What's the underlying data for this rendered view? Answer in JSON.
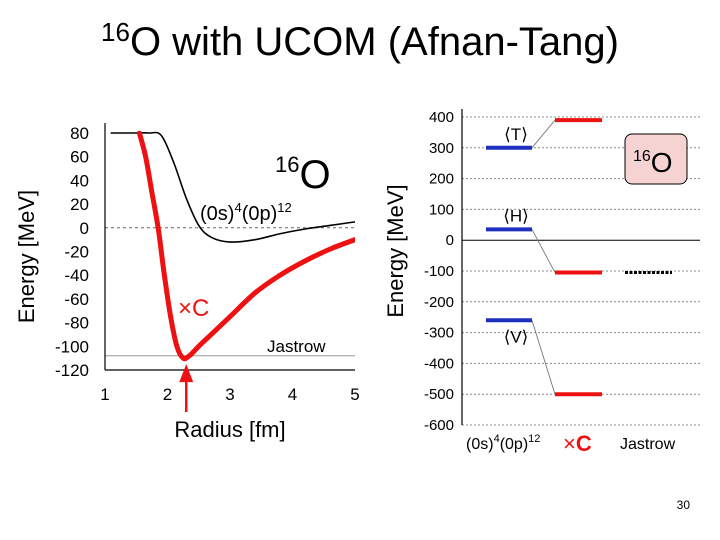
{
  "slide": {
    "title_sup": "16",
    "title_main": "O with UCOM (Afnan-Tang)",
    "page_number": "30"
  },
  "colors": {
    "red": "#ee1111",
    "blue": "#1f2fbf",
    "black": "#000000",
    "grid": "#888888",
    "box_fill": "#f6d3d3"
  },
  "chart_data": [
    {
      "type": "line",
      "xlabel": "Radius [fm]",
      "ylabel": "Energy [MeV]",
      "xlim": [
        1,
        5
      ],
      "ylim": [
        -120,
        80
      ],
      "xticks": [
        "1",
        "2",
        "3",
        "4",
        "5"
      ],
      "yticks": [
        "80",
        "60",
        "40",
        "20",
        "0",
        "-20",
        "-40",
        "-60",
        "-80",
        "-100",
        "-120"
      ],
      "grid": false,
      "annotations": {
        "nucleus_sup": "16",
        "nucleus": "O",
        "config": "(0s)^4(0p)^12",
        "config_parts": [
          "(0s)",
          "4",
          "(0p)",
          "12"
        ],
        "jastrow": "Jastrow",
        "ucom_marker": "×",
        "ucom_letter": "C"
      },
      "reference_lines": [
        {
          "y": 0,
          "style": "dashed"
        },
        {
          "y": -108,
          "style": "solid",
          "label": "Jastrow"
        }
      ],
      "series": [
        {
          "color": "#000000",
          "x": [
            1.1,
            1.3,
            1.5,
            1.7,
            1.9,
            2.1,
            2.3,
            2.5,
            2.7,
            3.0,
            3.4,
            3.8,
            4.2,
            4.6,
            5.0
          ],
          "y": [
            80,
            80,
            80,
            80,
            78,
            55,
            25,
            2,
            -8,
            -12,
            -10,
            -5,
            -1,
            2,
            5
          ]
        },
        {
          "color": "#ee1111",
          "x": [
            1.55,
            1.65,
            1.75,
            1.85,
            1.95,
            2.05,
            2.15,
            2.25,
            2.35,
            2.5,
            2.7,
            3.0,
            3.4,
            3.8,
            4.2,
            4.6,
            5.0
          ],
          "y": [
            80,
            60,
            30,
            0,
            -40,
            -75,
            -100,
            -110,
            -108,
            -100,
            -90,
            -75,
            -55,
            -40,
            -28,
            -18,
            -10
          ]
        }
      ]
    },
    {
      "type": "bar",
      "ylabel": "Energy [MeV]",
      "ylim": [
        -600,
        400
      ],
      "yticks": [
        "400",
        "300",
        "200",
        "100",
        "0",
        "-100",
        "-200",
        "-300",
        "-400",
        "-500",
        "-600"
      ],
      "grid": true,
      "categories": [
        "(0s)^4(0p)^12",
        "×C",
        "Jastrow"
      ],
      "category_parts": {
        "config": [
          "(0s)",
          "4",
          "(0p)",
          "12"
        ],
        "ucom_marker": "×",
        "ucom_letter": "C",
        "jastrow": "Jastrow"
      },
      "quantity_labels": {
        "T": "⟨T⟩",
        "H": "⟨H⟩",
        "V": "⟨V⟩"
      },
      "nucleus_box": {
        "sup": "16",
        "text": "O"
      },
      "levels": [
        {
          "quantity": "T",
          "category": "(0s)^4(0p)^12",
          "value": 300,
          "color": "#1f2fbf"
        },
        {
          "quantity": "H",
          "category": "(0s)^4(0p)^12",
          "value": 35,
          "color": "#1f2fbf"
        },
        {
          "quantity": "V",
          "category": "(0s)^4(0p)^12",
          "value": -260,
          "color": "#1f2fbf"
        },
        {
          "quantity": "T",
          "category": "×C",
          "value": 390,
          "color": "#ee1111"
        },
        {
          "quantity": "H",
          "category": "×C",
          "value": -105,
          "color": "#ee1111"
        },
        {
          "quantity": "V",
          "category": "×C",
          "value": -500,
          "color": "#ee1111"
        },
        {
          "quantity": "H",
          "category": "Jastrow",
          "value": -105,
          "color": "#000000"
        }
      ]
    }
  ]
}
